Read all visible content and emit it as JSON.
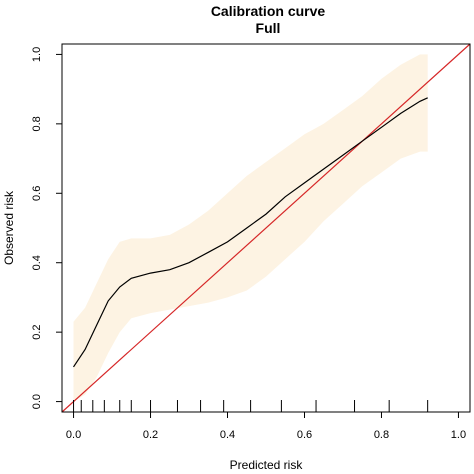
{
  "chart_data": {
    "type": "line",
    "title": "Calibration curve",
    "subtitle": "Full",
    "xlabel": "Predicted risk",
    "ylabel": "Observed risk",
    "xlim": [
      -0.03,
      1.03
    ],
    "ylim": [
      -0.03,
      1.03
    ],
    "x_ticks": [
      "0.0",
      "0.2",
      "0.4",
      "0.6",
      "0.8",
      "1.0"
    ],
    "y_ticks": [
      "0.0",
      "0.2",
      "0.4",
      "0.6",
      "0.8",
      "1.0"
    ],
    "grid": false,
    "legend": "none",
    "colors": {
      "ci_band": "#fdf3e3",
      "curve": "#000000",
      "reference": "#d62728",
      "axis": "#000000"
    },
    "reference_line": {
      "x": [
        -0.03,
        1.03
      ],
      "y": [
        -0.03,
        1.03
      ]
    },
    "series": [
      {
        "x": [
          0.0,
          0.03,
          0.06,
          0.09,
          0.12,
          0.15,
          0.2,
          0.25,
          0.3,
          0.35,
          0.4,
          0.45,
          0.5,
          0.55,
          0.6,
          0.65,
          0.7,
          0.75,
          0.8,
          0.85,
          0.9,
          0.92
        ],
        "y": [
          0.1,
          0.15,
          0.22,
          0.29,
          0.33,
          0.355,
          0.37,
          0.38,
          0.4,
          0.43,
          0.46,
          0.5,
          0.54,
          0.59,
          0.63,
          0.67,
          0.71,
          0.75,
          0.79,
          0.83,
          0.865,
          0.875
        ]
      }
    ],
    "confidence_band": {
      "x": [
        0.0,
        0.03,
        0.06,
        0.09,
        0.12,
        0.15,
        0.2,
        0.25,
        0.3,
        0.35,
        0.4,
        0.45,
        0.5,
        0.55,
        0.6,
        0.65,
        0.7,
        0.75,
        0.8,
        0.85,
        0.9,
        0.92
      ],
      "lower": [
        0.0,
        0.02,
        0.07,
        0.14,
        0.2,
        0.24,
        0.255,
        0.265,
        0.275,
        0.285,
        0.3,
        0.32,
        0.36,
        0.41,
        0.46,
        0.52,
        0.57,
        0.62,
        0.66,
        0.7,
        0.72,
        0.72
      ],
      "upper": [
        0.23,
        0.27,
        0.34,
        0.41,
        0.46,
        0.47,
        0.47,
        0.48,
        0.51,
        0.55,
        0.6,
        0.65,
        0.69,
        0.73,
        0.77,
        0.8,
        0.84,
        0.88,
        0.93,
        0.97,
        1.0,
        1.0
      ]
    },
    "rug": [
      0.0,
      0.02,
      0.05,
      0.08,
      0.12,
      0.15,
      0.2,
      0.27,
      0.33,
      0.39,
      0.46,
      0.54,
      0.63,
      0.73,
      0.82,
      0.92
    ]
  }
}
